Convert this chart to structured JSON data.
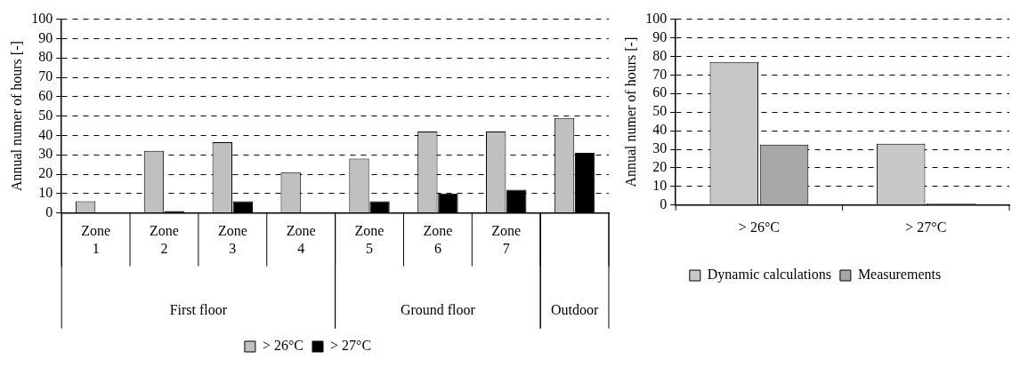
{
  "chart_data": [
    {
      "type": "bar",
      "ylabel": "Annual numer of hours [-]",
      "categories": [
        "Zone 1",
        "Zone 2",
        "Zone 3",
        "Zone 4",
        "Zone 5",
        "Zone 6",
        "Zone 7",
        null
      ],
      "series": [
        {
          "name": "> 26°C",
          "color": "#c0c0c0",
          "values": [
            6,
            32,
            36.5,
            21,
            28,
            42,
            42,
            49
          ]
        },
        {
          "name": "> 27°C",
          "color": "#000000",
          "values": [
            0,
            1,
            6,
            0,
            6,
            10,
            12,
            31
          ]
        }
      ],
      "ylim": [
        0,
        100
      ],
      "yticks": [
        0,
        10,
        20,
        30,
        40,
        50,
        60,
        70,
        80,
        90,
        100
      ],
      "grid": "y",
      "legend": "bottom",
      "annotations": [
        "First floor",
        "Ground floor",
        "Outdoor"
      ]
    },
    {
      "type": "bar",
      "ylabel": "Annual numer of hours [-]",
      "categories": [
        "> 26°C",
        "> 27°C"
      ],
      "series": [
        {
          "name": "Dynamic calculations",
          "color": "#c8c8c8",
          "values": [
            77,
            33
          ]
        },
        {
          "name": "Measurements",
          "color": "#a8a8a8",
          "values": [
            32.5,
            1
          ]
        }
      ],
      "ylim": [
        0,
        100
      ],
      "yticks": [
        0,
        10,
        20,
        30,
        40,
        50,
        60,
        70,
        80,
        90,
        100
      ],
      "grid": "y",
      "legend": "bottom"
    }
  ]
}
